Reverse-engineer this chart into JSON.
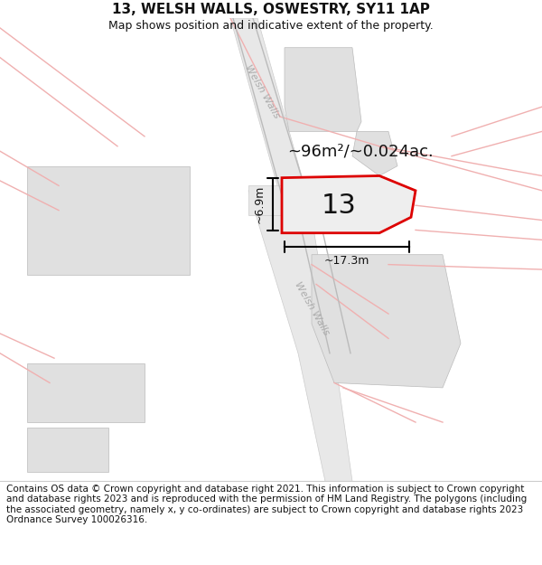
{
  "title": "13, WELSH WALLS, OSWESTRY, SY11 1AP",
  "subtitle": "Map shows position and indicative extent of the property.",
  "footer": "Contains OS data © Crown copyright and database right 2021. This information is subject to Crown copyright and database rights 2023 and is reproduced with the permission of HM Land Registry. The polygons (including the associated geometry, namely x, y co-ordinates) are subject to Crown copyright and database rights 2023 Ordnance Survey 100026316.",
  "area_label": "~96m²/~0.024ac.",
  "width_label": "~17.3m",
  "height_label": "~6.9m",
  "number_label": "13",
  "bg_color": "#ffffff",
  "map_bg": "#ffffff",
  "pink_line_color": "#f0b0b0",
  "property_fill": "#eeeeee",
  "property_edge": "#dd0000",
  "property_lw": 2.0,
  "road_fill": "#e8e8e8",
  "road_edge": "#cccccc",
  "building_fill": "#e0e0e0",
  "building_edge": "#bbbbbb",
  "dim_color": "#000000",
  "road_label_color": "#aaaaaa",
  "title_fontsize": 11,
  "subtitle_fontsize": 9,
  "footer_fontsize": 7.5,
  "label_fontsize": 13,
  "number_fontsize": 22,
  "dim_fontsize": 9
}
